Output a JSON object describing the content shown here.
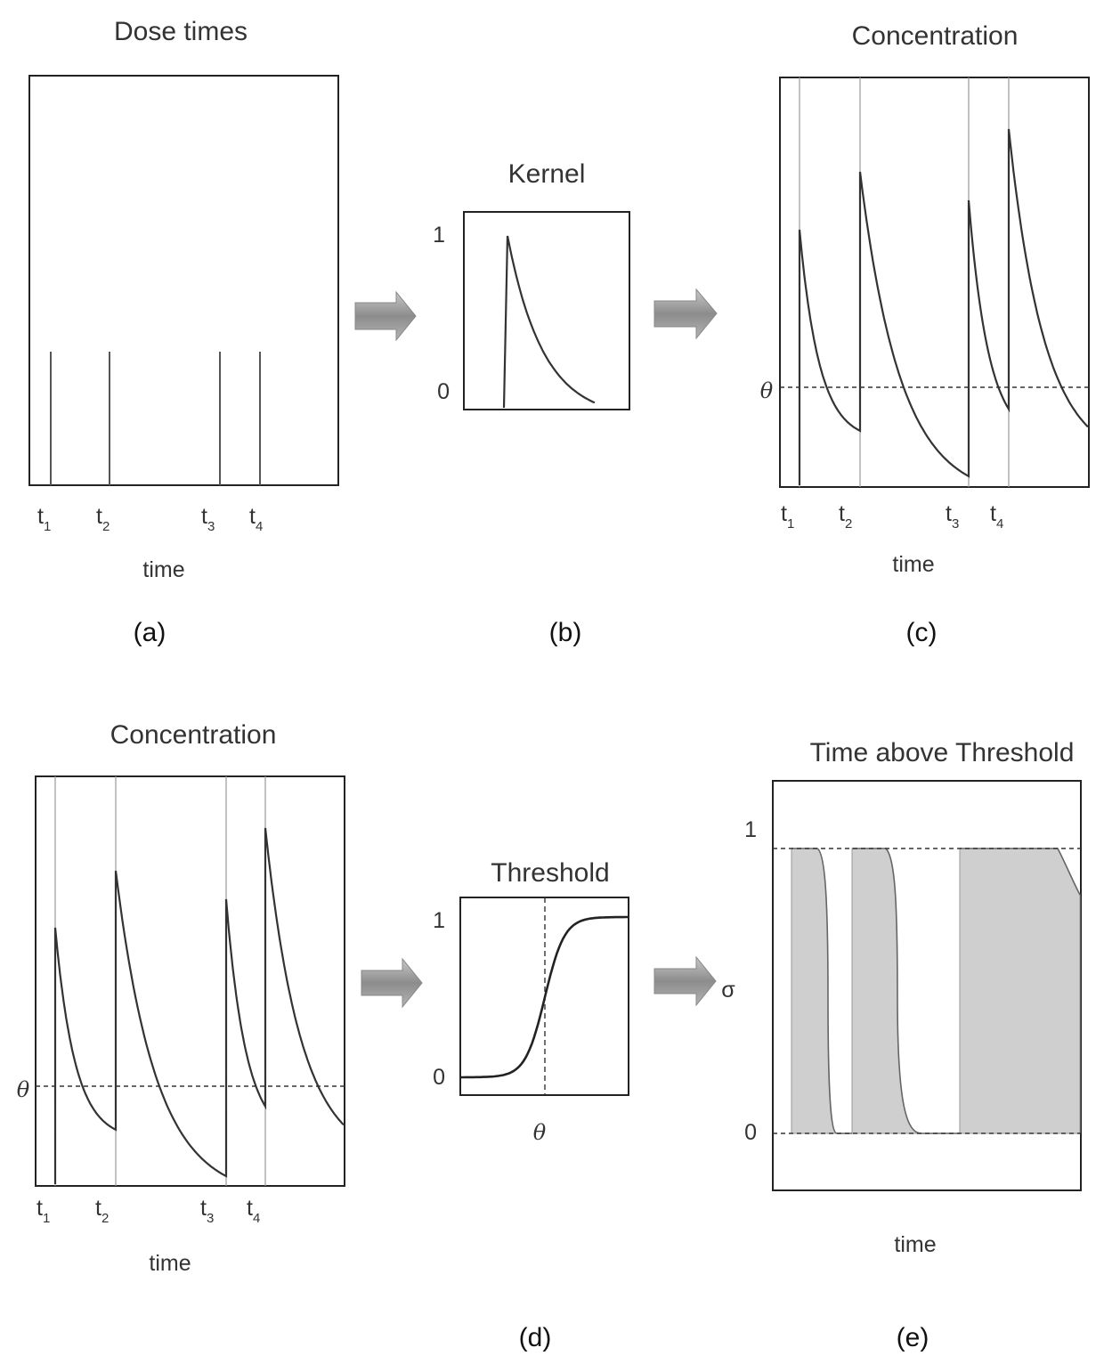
{
  "panels": {
    "a": {
      "title": "Dose times",
      "xlabel": "time",
      "caption": "(a)"
    },
    "b": {
      "title": "Kernel",
      "ytick_top": "1",
      "ytick_bottom": "0",
      "caption": "(b)"
    },
    "c": {
      "title": "Concentration",
      "xlabel": "time",
      "threshold_label": "θ",
      "caption": "(c)"
    },
    "d": {
      "title": "Concentration",
      "xlabel": "time",
      "threshold_label": "θ",
      "caption": "(d)"
    },
    "thr": {
      "title": "Threshold",
      "ytick_top": "1",
      "ytick_bottom": "0",
      "xlabel": "θ"
    },
    "e": {
      "title": "Time above Threshold",
      "ylabel": "σ",
      "ytick_top": "1",
      "ytick_bottom": "0",
      "xlabel": "time",
      "caption": "(e)"
    }
  },
  "dose_labels": [
    {
      "base": "t",
      "sub": "1"
    },
    {
      "base": "t",
      "sub": "2"
    },
    {
      "base": "t",
      "sub": "3"
    },
    {
      "base": "t",
      "sub": "4"
    }
  ],
  "colors": {
    "arrow": "#9a9a9a",
    "shade": "#cfcfcf",
    "line": "#222222"
  }
}
